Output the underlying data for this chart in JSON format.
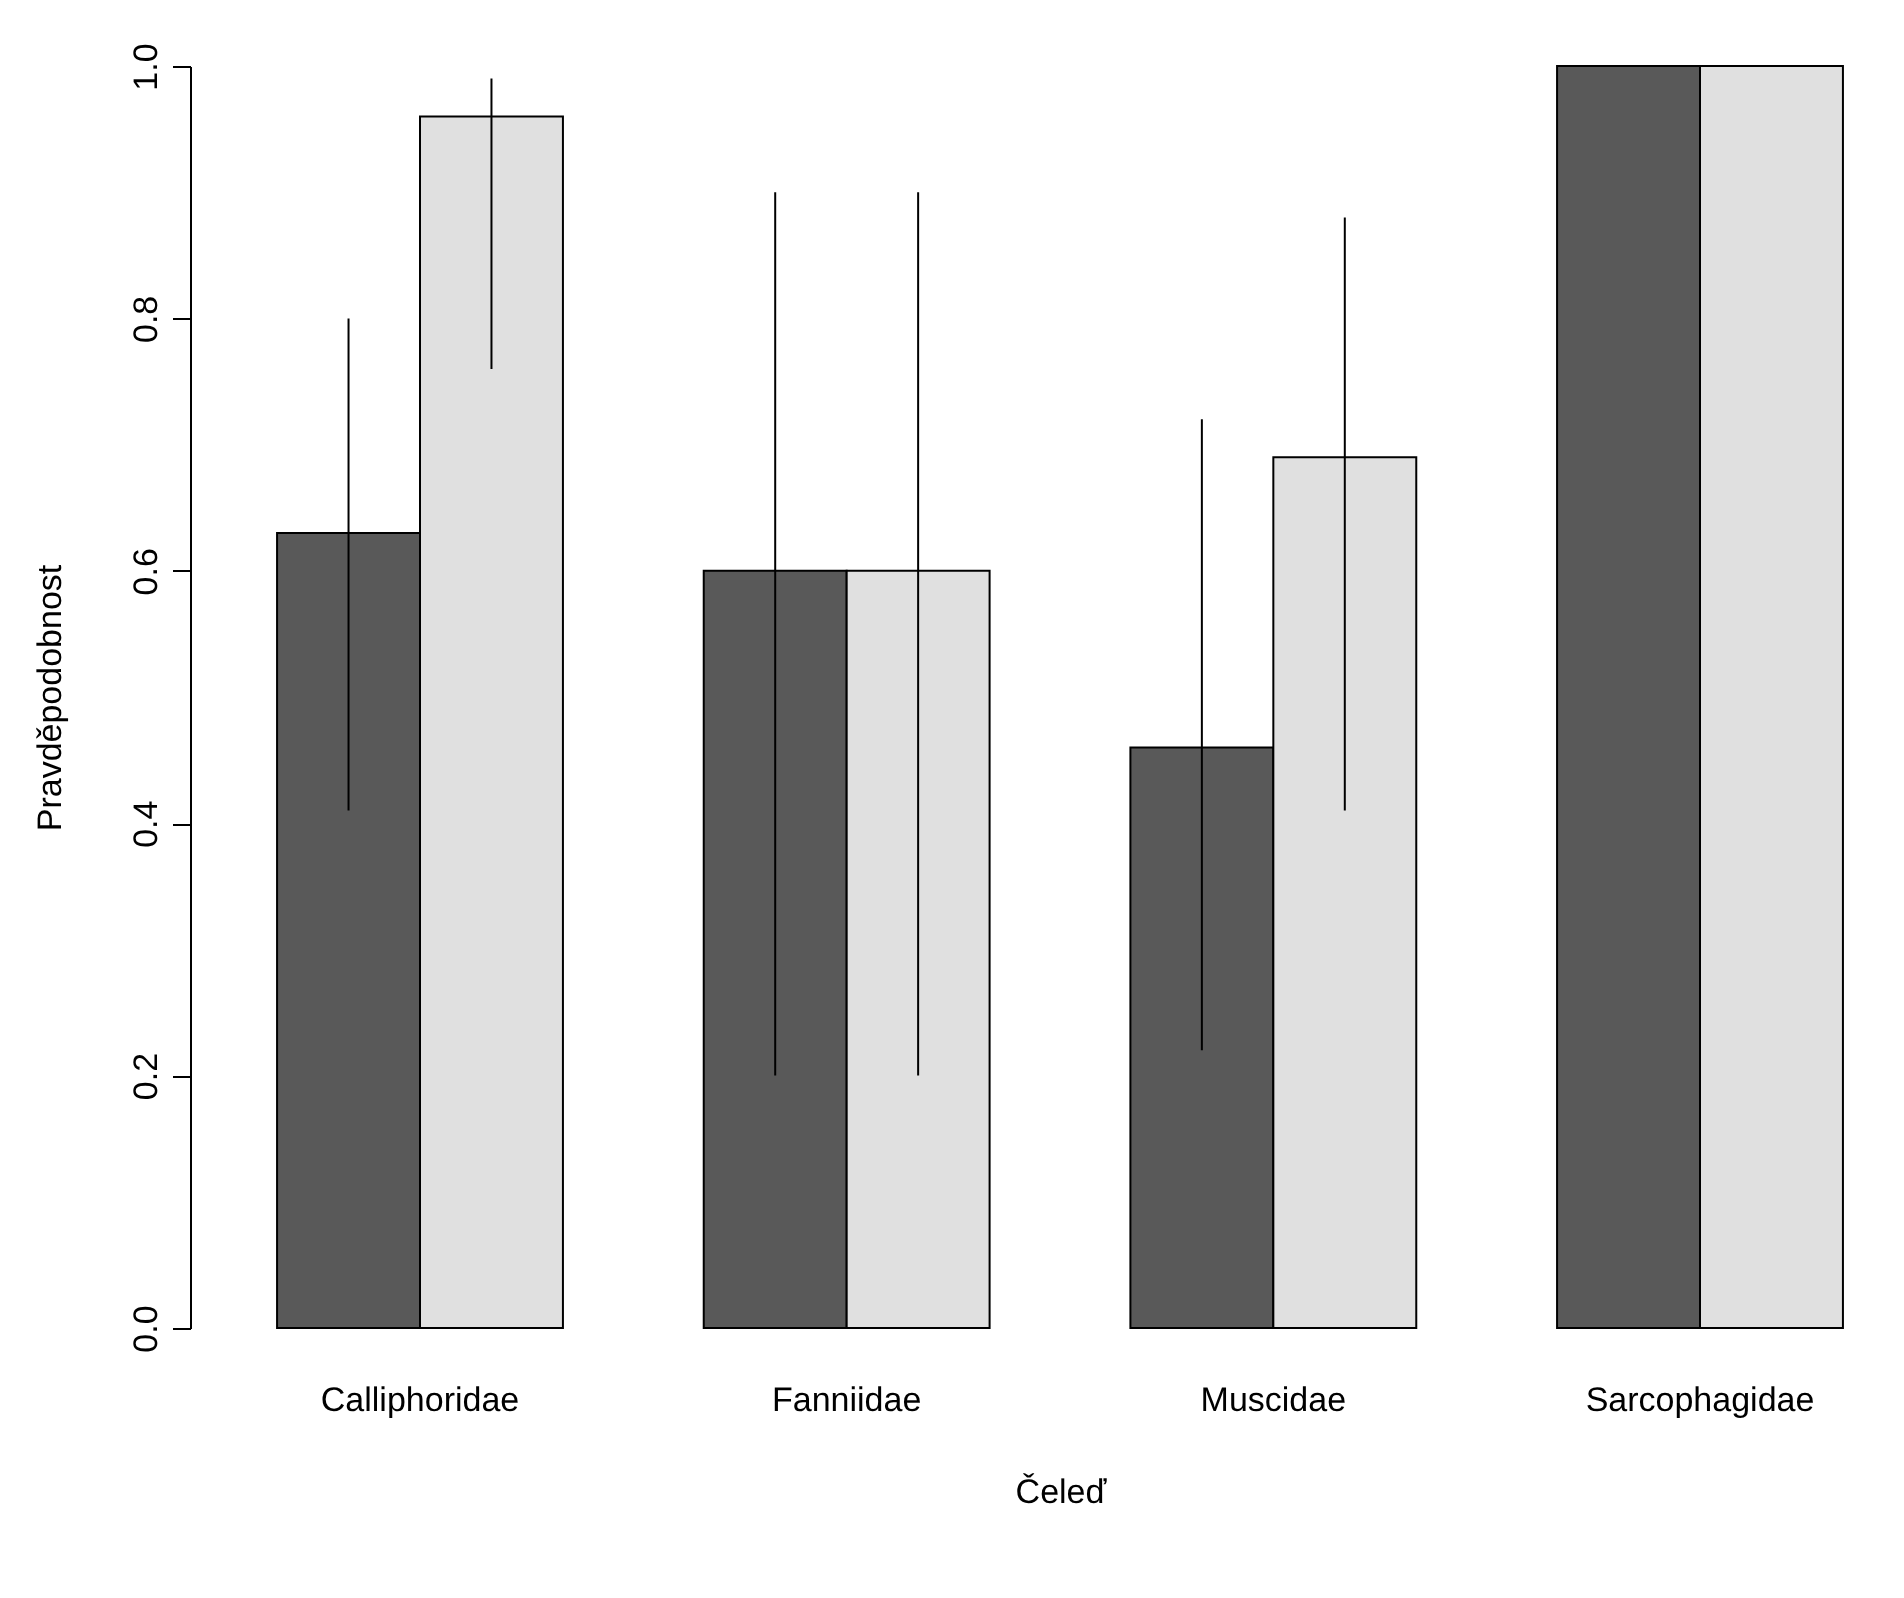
{
  "chart_data": {
    "type": "bar",
    "xlabel": "Čeleď",
    "ylabel": "Pravděpodobnost",
    "categories": [
      "Calliphoridae",
      "Fanniidae",
      "Muscidae",
      "Sarcophagidae"
    ],
    "series": [
      {
        "color": "#595959",
        "values": [
          0.63,
          0.6,
          0.46,
          1.0
        ],
        "errors": [
          [
            0.41,
            0.8
          ],
          [
            0.2,
            0.9
          ],
          [
            0.22,
            0.72
          ],
          null
        ]
      },
      {
        "color": "#e0e0e0",
        "values": [
          0.96,
          0.6,
          0.69,
          1.0
        ],
        "errors": [
          [
            0.76,
            0.99
          ],
          [
            0.2,
            0.9
          ],
          [
            0.41,
            0.88
          ],
          null
        ]
      }
    ],
    "ylim": [
      0,
      1
    ],
    "yticks": [
      {
        "value": 0,
        "label": "0.0"
      },
      {
        "value": 0.2,
        "label": "0.2"
      },
      {
        "value": 0.4,
        "label": "0.4"
      },
      {
        "value": 0.6,
        "label": "0.6"
      },
      {
        "value": 0.8,
        "label": "0.8"
      },
      {
        "value": 1,
        "label": "1.0"
      }
    ]
  }
}
